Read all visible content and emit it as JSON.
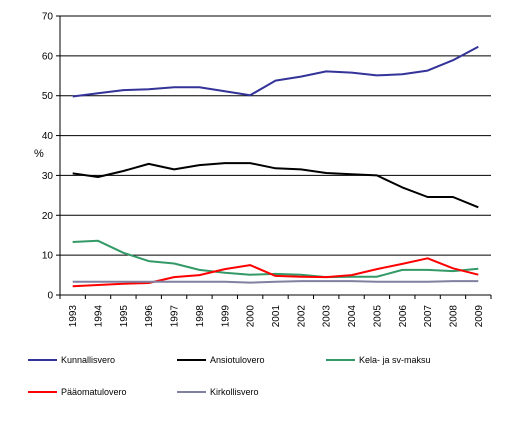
{
  "chart_data": {
    "type": "line",
    "title": "",
    "xlabel": "",
    "ylabel": "%",
    "ylim": [
      0,
      70
    ],
    "yticks": [
      0,
      10,
      20,
      30,
      40,
      50,
      60,
      70
    ],
    "grid": "horizontal",
    "legend_position": "bottom",
    "categories": [
      "1993",
      "1994",
      "1995",
      "1996",
      "1997",
      "1998",
      "1999",
      "2000",
      "2001",
      "2002",
      "2003",
      "2004",
      "2005",
      "2006",
      "2007",
      "2008",
      "2009"
    ],
    "series": [
      {
        "name": "Kunnallisvero",
        "color": "#333399",
        "values": [
          49.8,
          50.6,
          51.4,
          51.6,
          52.1,
          52.1,
          51.1,
          50.1,
          53.8,
          54.8,
          56.1,
          55.8,
          55.1,
          55.4,
          56.3,
          58.9,
          62.3
        ]
      },
      {
        "name": "Ansiotulovero",
        "color": "#000000",
        "values": [
          30.5,
          29.6,
          31.1,
          32.9,
          31.5,
          32.6,
          33.1,
          33.1,
          31.8,
          31.5,
          30.6,
          30.3,
          30.0,
          27.0,
          24.6,
          24.6,
          22.0
        ]
      },
      {
        "name": "Kela- ja sv-maksu",
        "color": "#339966",
        "values": [
          13.3,
          13.6,
          10.6,
          8.5,
          7.9,
          6.3,
          5.6,
          5.1,
          5.3,
          5.1,
          4.5,
          4.6,
          4.6,
          6.3,
          6.3,
          6.0,
          6.6
        ]
      },
      {
        "name": "Pääomatulovero",
        "color": "#ff0000",
        "values": [
          2.2,
          2.5,
          2.8,
          3.0,
          4.5,
          5.0,
          6.5,
          7.5,
          4.8,
          4.6,
          4.5,
          5.0,
          6.5,
          7.8,
          9.2,
          6.7,
          5.1
        ]
      },
      {
        "name": "Kirkollisvero",
        "color": "#8080a0",
        "values": [
          3.3,
          3.3,
          3.3,
          3.3,
          3.3,
          3.3,
          3.3,
          3.1,
          3.3,
          3.5,
          3.5,
          3.5,
          3.3,
          3.3,
          3.3,
          3.5,
          3.5
        ]
      }
    ]
  }
}
